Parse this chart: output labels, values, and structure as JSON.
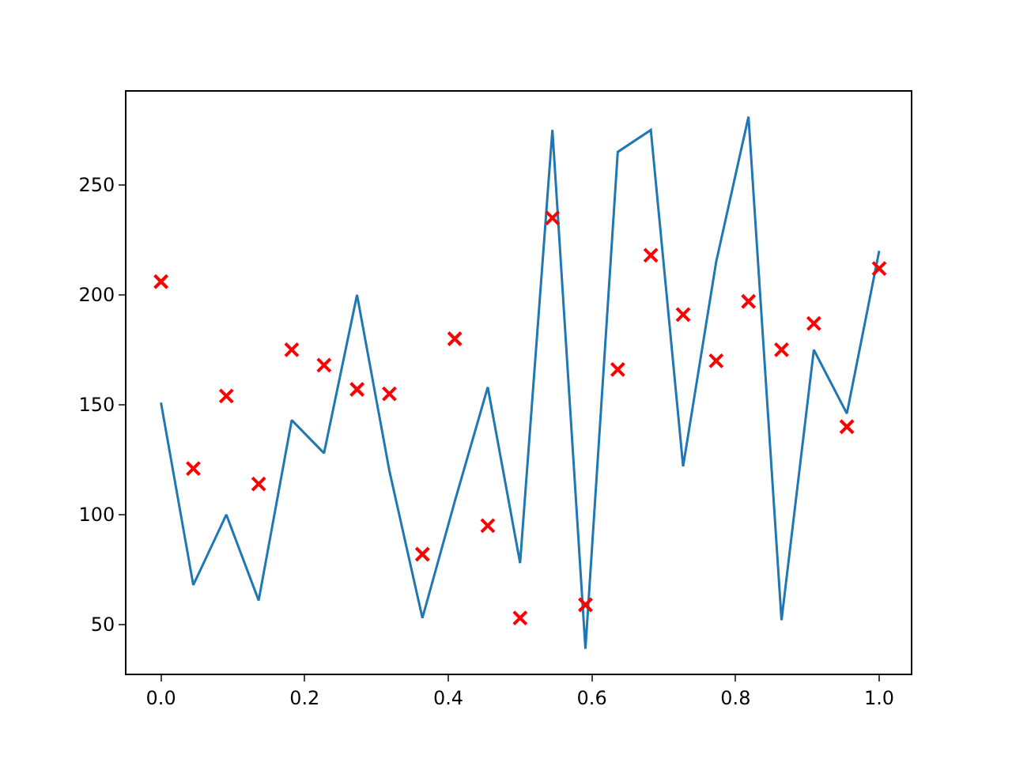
{
  "chart_data": {
    "type": "line",
    "x": [
      0,
      0.045,
      0.091,
      0.136,
      0.182,
      0.227,
      0.273,
      0.318,
      0.364,
      0.409,
      0.455,
      0.5,
      0.545,
      0.591,
      0.636,
      0.682,
      0.727,
      0.773,
      0.818,
      0.864,
      0.909,
      0.955,
      1
    ],
    "series": [
      {
        "color": "#1f77b4",
        "marker": "none",
        "values": [
          151,
          68,
          100,
          61,
          143,
          128,
          200,
          120,
          53,
          106,
          158,
          78,
          275,
          39,
          265,
          275,
          122,
          215,
          281,
          52,
          175,
          146,
          220
        ]
      },
      {
        "type": "scatter",
        "color": "#ff0000",
        "marker": "cross",
        "values": [
          206,
          121,
          154,
          114,
          175,
          168,
          157,
          155,
          82,
          180,
          95,
          53,
          235,
          59,
          166,
          218,
          191,
          170,
          197,
          175,
          187,
          140,
          212
        ]
      }
    ],
    "xlim": [
      -0.048,
      1.044
    ],
    "xticks": [
      {
        "value": 0,
        "label": "0.0"
      },
      0.2,
      0.4,
      0.6,
      0.8,
      {
        "value": 1,
        "label": "1.0"
      }
    ],
    "ylim": [
      27.7,
      292.4
    ],
    "yticks": [
      50,
      100,
      150,
      200,
      250
    ],
    "grid": false,
    "legend": false
  }
}
